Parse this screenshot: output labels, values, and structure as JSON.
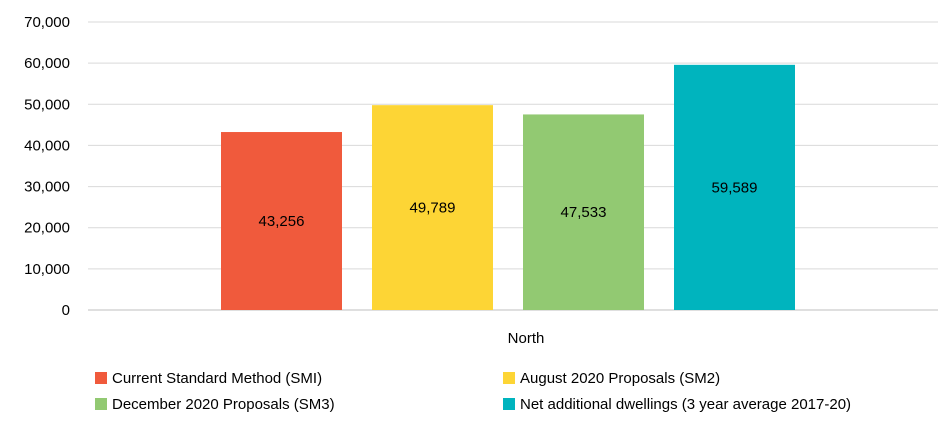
{
  "chart_data": {
    "type": "bar",
    "categories": [
      "North"
    ],
    "series": [
      {
        "name": "Current Standard Method (SMI)",
        "values": [
          43256
        ],
        "label": "43,256",
        "color": "#f05a3c"
      },
      {
        "name": "August 2020 Proposals (SM2)",
        "values": [
          49789
        ],
        "label": "49,789",
        "color": "#fdd535"
      },
      {
        "name": "December 2020 Proposals (SM3)",
        "values": [
          47533
        ],
        "label": "47,533",
        "color": "#92c972"
      },
      {
        "name": "Net additional dwellings (3 year average 2017-20)",
        "values": [
          59589
        ],
        "label": "59,589",
        "color": "#00b4be"
      }
    ],
    "ylim": [
      0,
      70000
    ],
    "yticks": [
      0,
      10000,
      20000,
      30000,
      40000,
      50000,
      60000,
      70000
    ],
    "ytick_labels": [
      "0",
      "10,000",
      "20,000",
      "30,000",
      "40,000",
      "50,000",
      "60,000",
      "70,000"
    ],
    "grid": true,
    "legend_position": "bottom",
    "title": "",
    "xlabel": "",
    "ylabel": ""
  }
}
